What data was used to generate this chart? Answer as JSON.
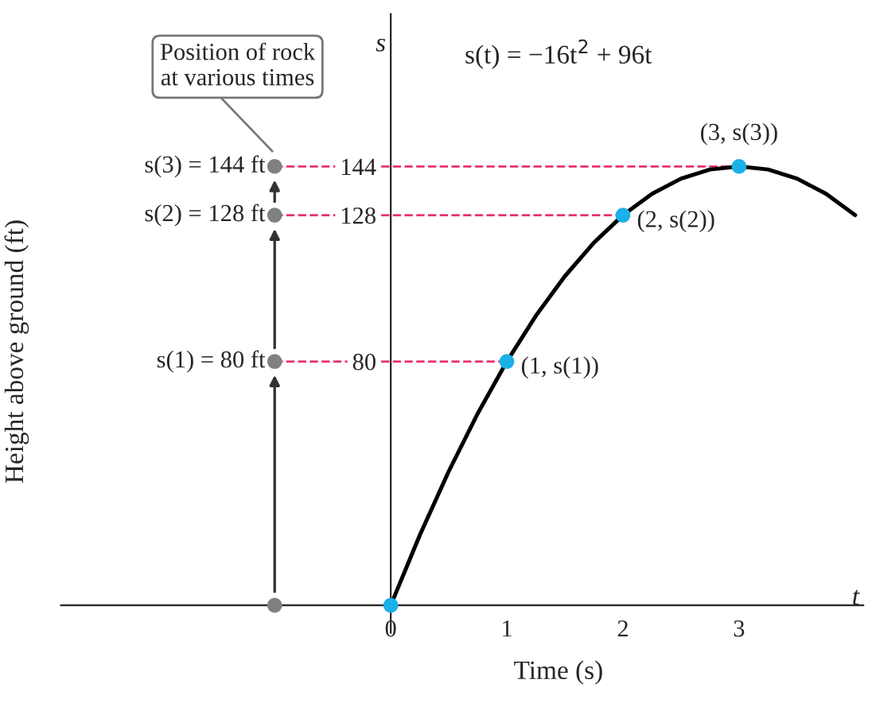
{
  "chart_data": {
    "type": "line",
    "xlabel": "Time (s)",
    "ylabel": "Height above ground (ft)",
    "xlim": [
      -2.84,
      4.07
    ],
    "ylim": [
      -9,
      194
    ],
    "xticks": [
      0,
      1,
      2,
      3
    ],
    "yticks": [
      80,
      128,
      144
    ],
    "grid": false,
    "legend": false,
    "series": [
      {
        "type": "line",
        "color": "#000000",
        "marker": "none",
        "x": [
          0,
          0.25,
          0.5,
          0.75,
          1,
          1.25,
          1.5,
          1.75,
          2,
          2.25,
          2.5,
          2.75,
          3,
          3.25,
          3.5,
          3.75,
          4
        ],
        "values": [
          0,
          23,
          44,
          63,
          80,
          95,
          108,
          119,
          128,
          135,
          140,
          143,
          144,
          143,
          140,
          135,
          128
        ]
      },
      {
        "type": "scatter",
        "color": "#1ab0e8",
        "marker": "circle",
        "x": [
          0,
          1,
          2,
          3
        ],
        "values": [
          0,
          80,
          128,
          144
        ]
      },
      {
        "type": "scatter",
        "color": "#808080",
        "marker": "circle",
        "x": [
          -1,
          -1,
          -1,
          -1
        ],
        "values": [
          0,
          80,
          128,
          144
        ]
      }
    ],
    "ref_lines": [
      {
        "axis": "y",
        "value": 80,
        "color": "#e8336b",
        "line_style": "dashed"
      },
      {
        "axis": "y",
        "value": 128,
        "color": "#e8336b",
        "line_style": "dashed"
      },
      {
        "axis": "y",
        "value": 144,
        "color": "#e8336b",
        "line_style": "dashed"
      }
    ],
    "annotations": [
      "s(t) = −16t$^{2}$ + 96t",
      "s",
      "t",
      "Position of rock\nat various times",
      {
        "text": "s(1) = 80 ft",
        "x": -1,
        "y": 80
      },
      {
        "text": "s(2) = 128 ft",
        "x": -1,
        "y": 128
      },
      {
        "text": "s(3) = 144 ft",
        "x": -1,
        "y": 144
      },
      {
        "text": "(1, s(1))",
        "x": 1,
        "y": 80
      },
      {
        "text": "(2, s(2))",
        "x": 2,
        "y": 128
      },
      {
        "text": "(3, s(3))",
        "x": 3,
        "y": 144
      }
    ]
  }
}
